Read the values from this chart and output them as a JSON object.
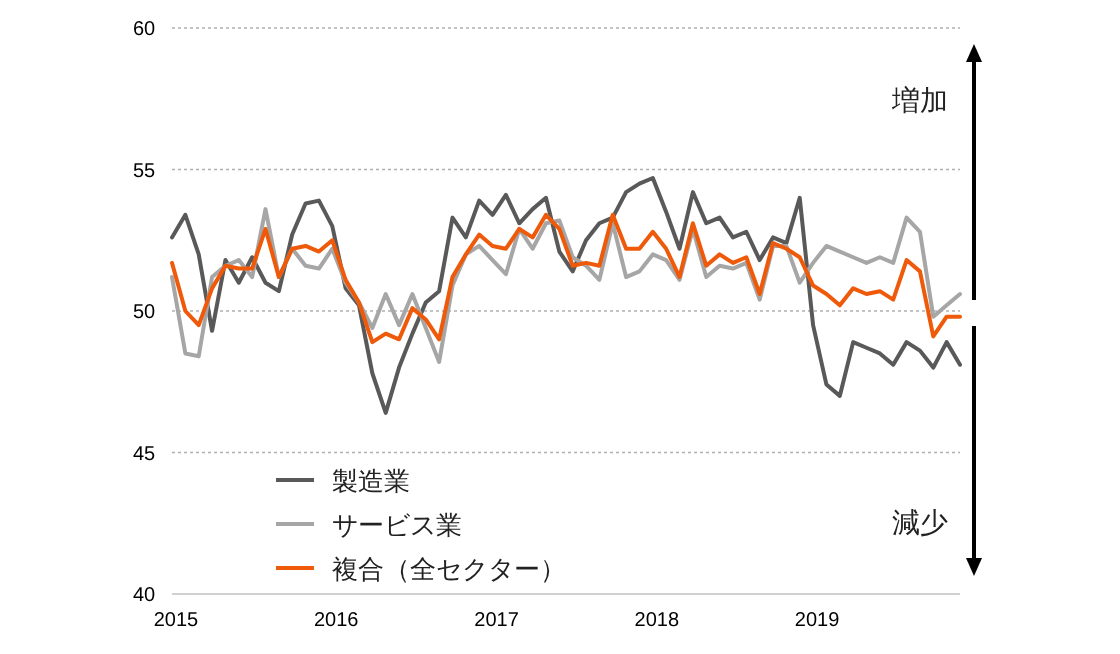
{
  "chart_data": {
    "type": "line",
    "x": [
      "2015-01",
      "2015-02",
      "2015-03",
      "2015-04",
      "2015-05",
      "2015-06",
      "2015-07",
      "2015-08",
      "2015-09",
      "2015-10",
      "2015-11",
      "2015-12",
      "2016-01",
      "2016-02",
      "2016-03",
      "2016-04",
      "2016-05",
      "2016-06",
      "2016-07",
      "2016-08",
      "2016-09",
      "2016-10",
      "2016-11",
      "2016-12",
      "2017-01",
      "2017-02",
      "2017-03",
      "2017-04",
      "2017-05",
      "2017-06",
      "2017-07",
      "2017-08",
      "2017-09",
      "2017-10",
      "2017-11",
      "2017-12",
      "2018-01",
      "2018-02",
      "2018-03",
      "2018-04",
      "2018-05",
      "2018-06",
      "2018-07",
      "2018-08",
      "2018-09",
      "2018-10",
      "2018-11",
      "2018-12",
      "2019-01",
      "2019-02",
      "2019-03",
      "2019-04",
      "2019-05",
      "2019-06",
      "2019-07",
      "2019-08",
      "2019-09",
      "2019-10",
      "2019-11",
      "2019-12"
    ],
    "series": [
      {
        "name": "製造業",
        "color": "#595959",
        "values": [
          52.6,
          53.4,
          52.0,
          49.3,
          51.8,
          51.0,
          51.9,
          51.0,
          50.7,
          52.7,
          53.8,
          53.9,
          53.0,
          50.8,
          50.2,
          47.8,
          46.4,
          48.0,
          49.2,
          50.3,
          50.7,
          53.3,
          52.6,
          53.9,
          53.4,
          54.1,
          53.1,
          53.6,
          54.0,
          52.1,
          51.4,
          52.5,
          53.1,
          53.3,
          54.2,
          54.5,
          54.7,
          53.5,
          52.2,
          54.2,
          53.1,
          53.3,
          52.6,
          52.8,
          51.8,
          52.6,
          52.4,
          54.0,
          49.5,
          47.4,
          47.0,
          48.9,
          48.7,
          48.5,
          48.1,
          48.9,
          48.6,
          48.0,
          48.9,
          48.1
        ]
      },
      {
        "name": "サービス業",
        "color": "#a6a6a6",
        "values": [
          51.2,
          48.5,
          48.4,
          51.2,
          51.6,
          51.8,
          51.2,
          53.6,
          51.2,
          52.2,
          51.6,
          51.5,
          52.2,
          51.0,
          50.3,
          49.4,
          50.6,
          49.5,
          50.6,
          49.4,
          48.2,
          50.9,
          52.0,
          52.3,
          51.8,
          51.3,
          52.9,
          52.2,
          53.1,
          53.2,
          51.9,
          51.6,
          51.1,
          53.1,
          51.2,
          51.4,
          52.0,
          51.8,
          51.1,
          52.9,
          51.2,
          51.6,
          51.5,
          51.7,
          50.4,
          52.3,
          52.3,
          51.0,
          51.7,
          52.3,
          52.1,
          51.9,
          51.7,
          51.9,
          51.7,
          53.3,
          52.8,
          49.8,
          50.2,
          50.6
        ]
      },
      {
        "name": "複合（全セクター）",
        "color": "#ee5a0a",
        "values": [
          51.7,
          50.0,
          49.5,
          50.8,
          51.6,
          51.5,
          51.5,
          52.9,
          51.2,
          52.2,
          52.3,
          52.1,
          52.5,
          51.1,
          50.3,
          48.9,
          49.2,
          49.0,
          50.1,
          49.7,
          49.0,
          51.2,
          52.0,
          52.7,
          52.3,
          52.2,
          52.9,
          52.6,
          53.4,
          52.9,
          51.6,
          51.7,
          51.6,
          53.4,
          52.2,
          52.2,
          52.8,
          52.2,
          51.2,
          53.1,
          51.6,
          52.0,
          51.7,
          51.9,
          50.6,
          52.4,
          52.2,
          51.9,
          50.9,
          50.6,
          50.2,
          50.8,
          50.6,
          50.7,
          50.4,
          51.8,
          51.4,
          49.1,
          49.8,
          49.8
        ]
      }
    ],
    "xlim": [
      "2015-01",
      "2019-12"
    ],
    "xticks": [
      {
        "value": "2015-01",
        "label": "2015"
      },
      {
        "value": "2016-01",
        "label": "2016"
      },
      {
        "value": "2017-01",
        "label": "2017"
      },
      {
        "value": "2018-01",
        "label": "2018"
      },
      {
        "value": "2019-01",
        "label": "2019"
      }
    ],
    "ylim": [
      40,
      60
    ],
    "yticks": [
      40,
      45,
      50,
      55,
      60
    ],
    "grid": "y",
    "legend": "bottom left",
    "annotations": [
      "増加",
      "減少"
    ]
  }
}
